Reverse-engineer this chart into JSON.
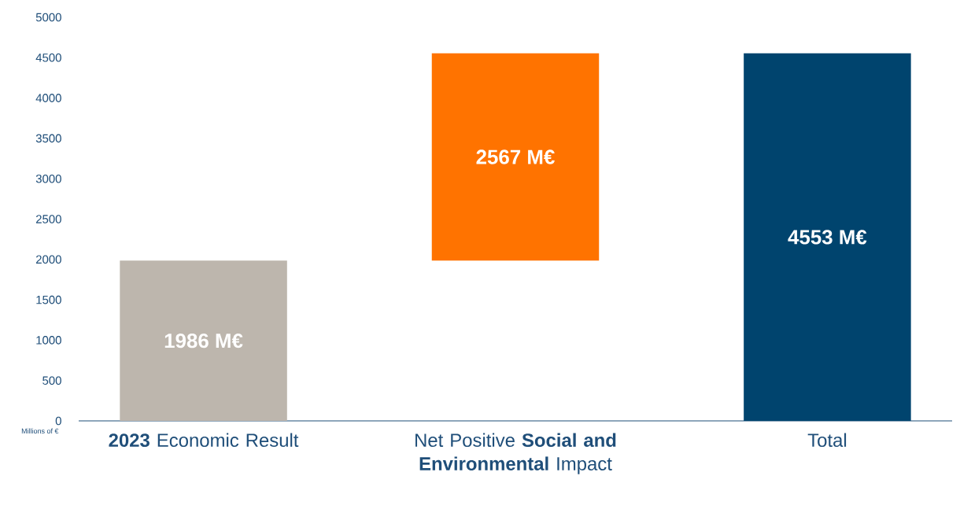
{
  "chart_data": {
    "type": "bar",
    "categories": [
      "**2023** Economic Result",
      "Net Positive **Social and Environmental** Impact",
      "Total"
    ],
    "values": [
      1986,
      2567,
      4553
    ],
    "base": [
      0,
      1986,
      0
    ],
    "colors": [
      "#bdb6ad",
      "#ff7300",
      "#00446e"
    ],
    "value_labels": [
      "1986 M€",
      "2567 M€",
      "4553 M€"
    ],
    "ylabel": "Millions of €",
    "ylim": [
      0,
      5000
    ],
    "yticks": [
      0,
      500,
      1000,
      1500,
      2000,
      2500,
      3000,
      3500,
      4000,
      4500,
      5000
    ]
  }
}
